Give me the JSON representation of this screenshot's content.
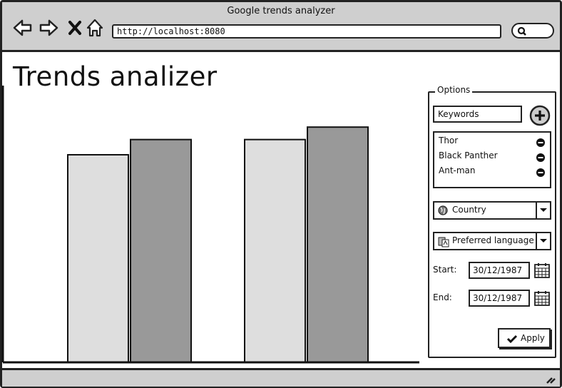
{
  "window": {
    "title": "Google trends analyzer"
  },
  "browser": {
    "url": "http://localhost:8080"
  },
  "page": {
    "title": "Trends analizer"
  },
  "chart_data": {
    "type": "bar",
    "categories": [
      "",
      ""
    ],
    "series": [
      {
        "values": [
          300,
          322
        ],
        "color": "#dedede"
      },
      {
        "values": [
          322,
          340
        ],
        "color": "#999999"
      }
    ],
    "ylim": [
      0,
      400
    ],
    "title": "",
    "xlabel": "",
    "ylabel": "",
    "grid": false,
    "axis_label_visible": false
  },
  "options": {
    "legend": "Options",
    "keyword_field": "Keywords",
    "keywords": [
      "Thor",
      "Black Panther",
      "Ant-man"
    ],
    "country_select": "Country",
    "language_select": "Preferred language",
    "start_label": "Start:",
    "start_date": "30/12/1987",
    "end_label": "End:",
    "end_date": "30/12/1987",
    "apply_label": "Apply"
  },
  "icons": {
    "back": "arrow-left-icon",
    "forward": "arrow-right-icon",
    "stop": "close-icon",
    "home": "home-icon",
    "search": "search-icon",
    "add": "plus-circle-icon",
    "remove": "minus-circle-icon",
    "globe": "globe-icon",
    "language": "language-icon",
    "calendar": "calendar-icon",
    "check": "check-icon"
  }
}
